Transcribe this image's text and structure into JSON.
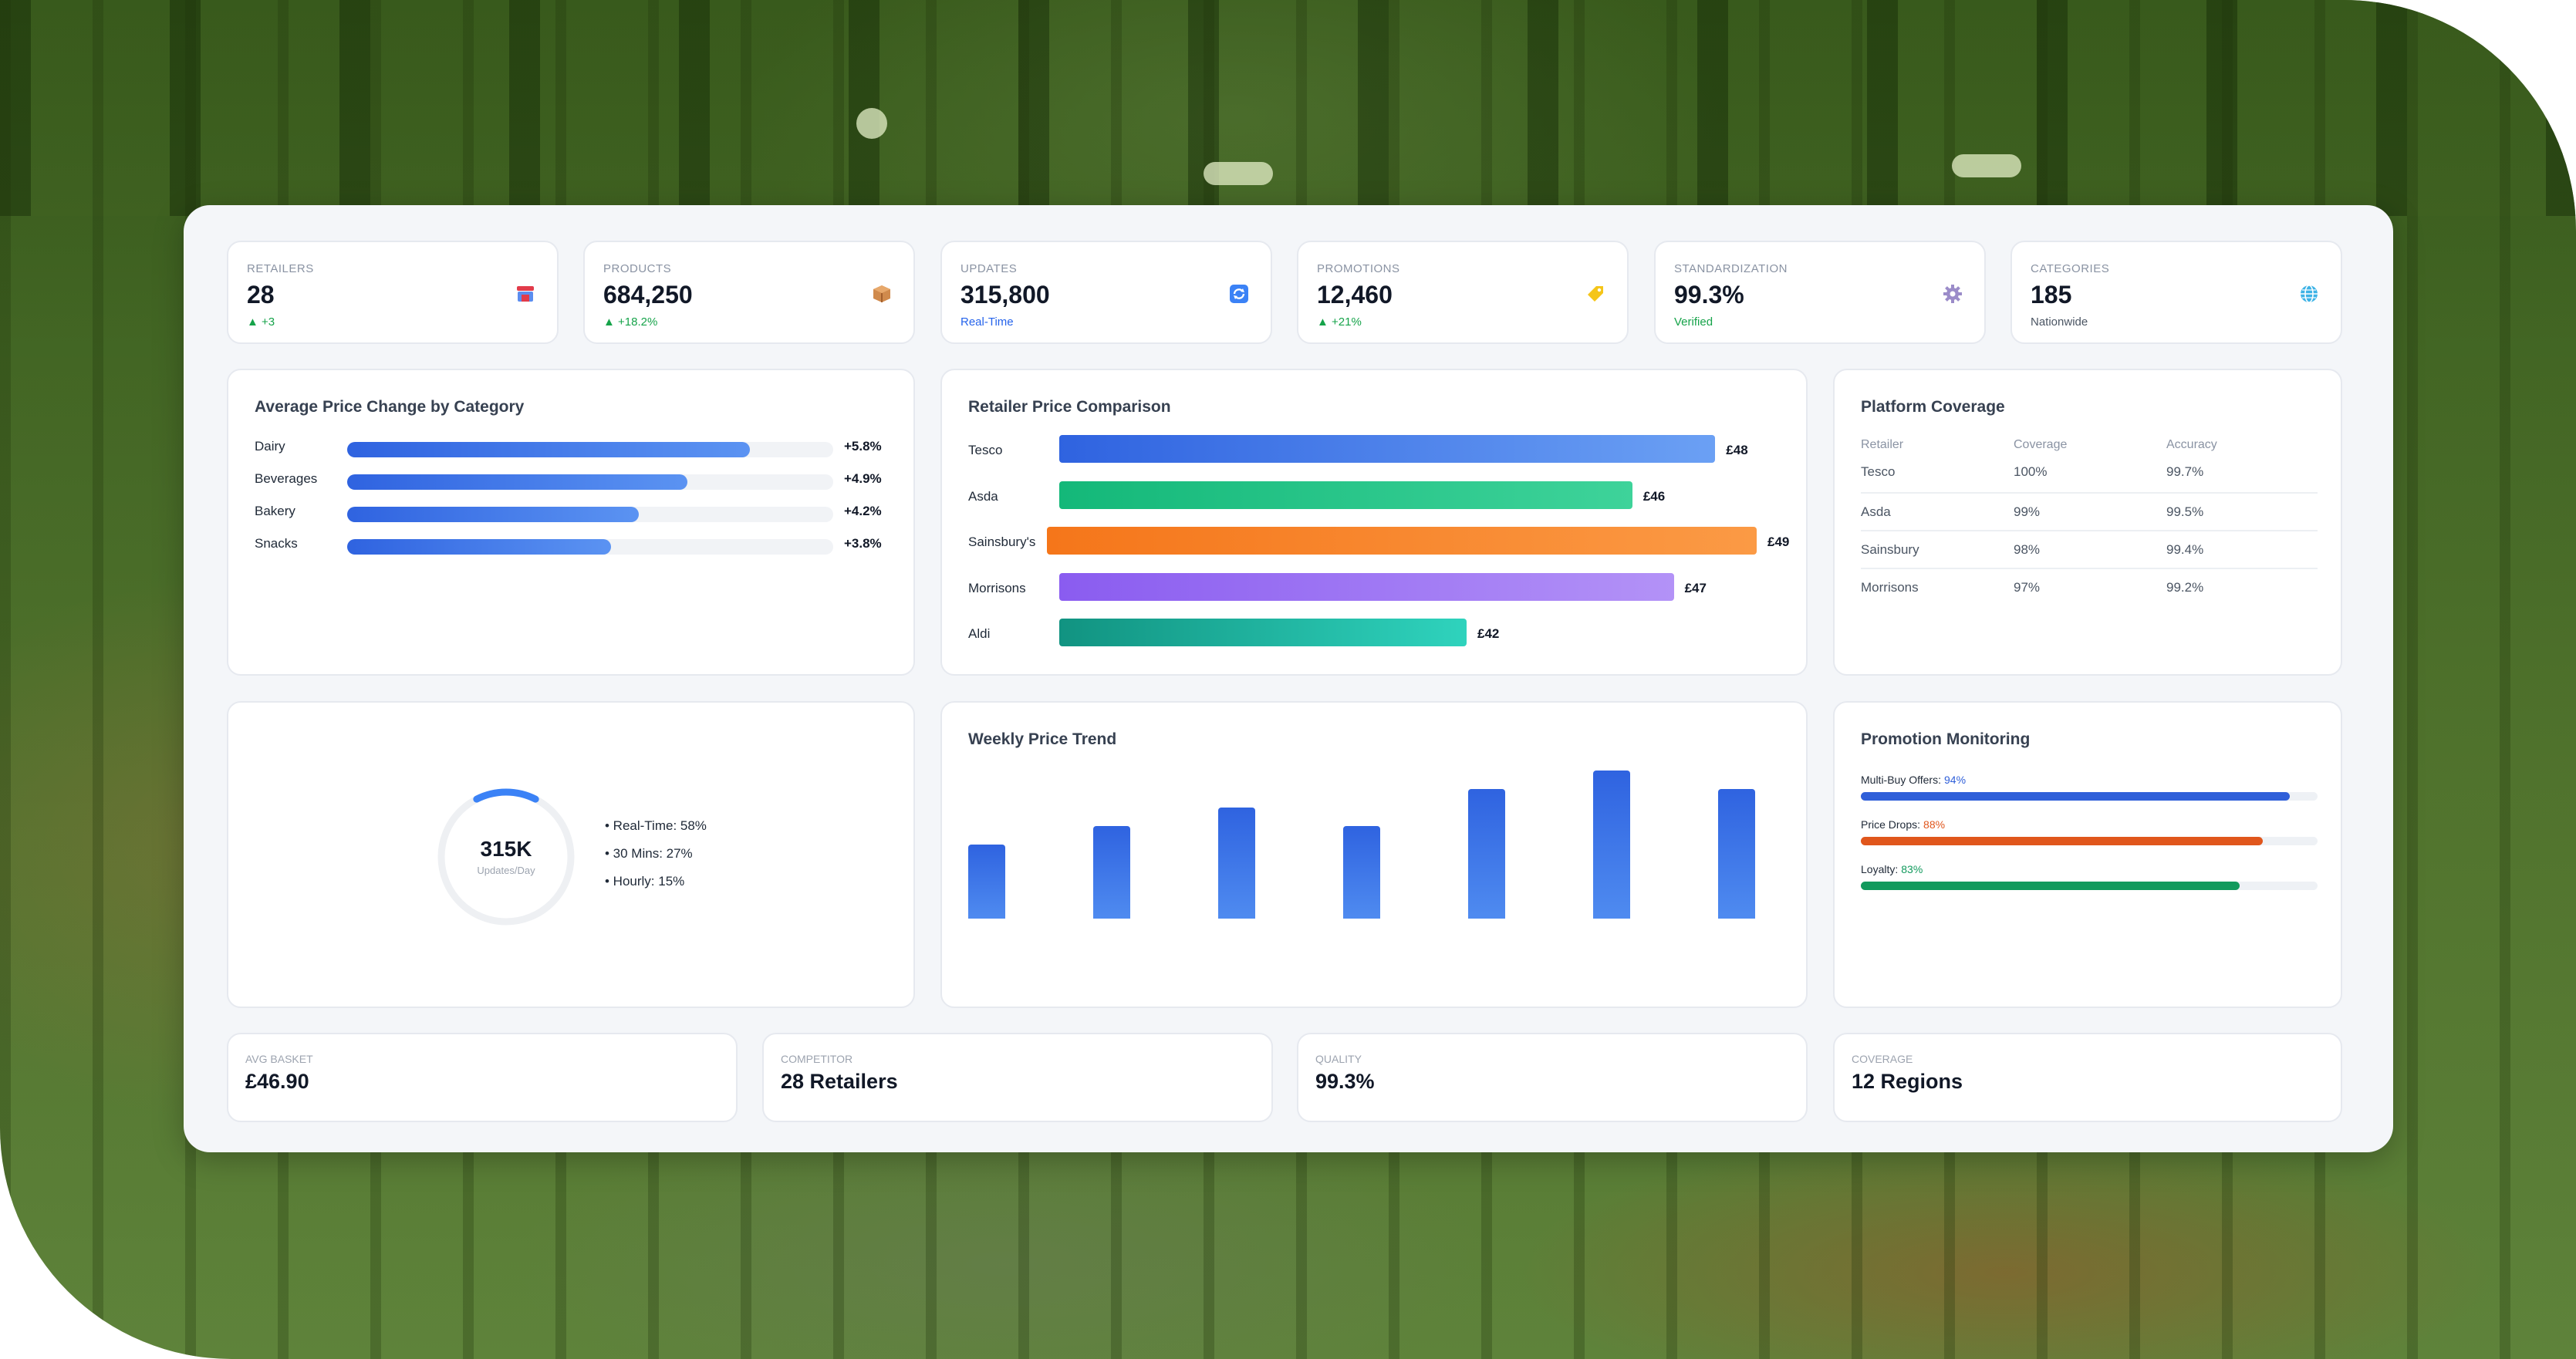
{
  "stats": [
    {
      "label": "RETAILERS",
      "value": "28",
      "sub": "▲ +3",
      "sub_color": "#16a34a",
      "icon": "store-icon",
      "icon_color": "#e23b4a"
    },
    {
      "label": "PRODUCTS",
      "value": "684,250",
      "sub": "▲ +18.2%",
      "sub_color": "#16a34a",
      "icon": "package-icon",
      "icon_color": "#c0703a"
    },
    {
      "label": "UPDATES",
      "value": "315,800",
      "sub": "Real-Time",
      "sub_color": "#2563eb",
      "icon": "refresh-icon",
      "icon_color": "#3b82f6"
    },
    {
      "label": "PROMOTIONS",
      "value": "12,460",
      "sub": "▲ +21%",
      "sub_color": "#16a34a",
      "icon": "tag-icon",
      "icon_color": "#eab308"
    },
    {
      "label": "STANDARDIZATION",
      "value": "99.3%",
      "sub": "Verified",
      "sub_color": "#16a34a",
      "icon": "gear-icon",
      "icon_color": "#8b7ab8"
    },
    {
      "label": "CATEGORIES",
      "value": "185",
      "sub": "Nationwide",
      "sub_color": "#4b5563",
      "icon": "globe-icon",
      "icon_color": "#22a7d8"
    }
  ],
  "avg_price_change": {
    "title": "Average Price Change by Category",
    "items": [
      {
        "name": "Dairy",
        "value": "+5.8%",
        "pct": 5.8
      },
      {
        "name": "Beverages",
        "value": "+4.9%",
        "pct": 4.9
      },
      {
        "name": "Bakery",
        "value": "+4.2%",
        "pct": 4.2
      },
      {
        "name": "Snacks",
        "value": "+3.8%",
        "pct": 3.8
      }
    ]
  },
  "retailer_comparison": {
    "title": "Retailer Price Comparison",
    "items": [
      {
        "name": "Tesco",
        "price": "£48",
        "amount": 48,
        "color_a": "#2f63e0",
        "color_b": "#6ba0f4"
      },
      {
        "name": "Asda",
        "price": "£46",
        "amount": 46,
        "color_a": "#14b879",
        "color_b": "#3ed39a"
      },
      {
        "name": "Sainsbury's",
        "price": "£49",
        "amount": 49,
        "color_a": "#f5761a",
        "color_b": "#fb9a45"
      },
      {
        "name": "Morrisons",
        "price": "£47",
        "amount": 47,
        "color_a": "#8a5cf0",
        "color_b": "#b392f7"
      },
      {
        "name": "Aldi",
        "price": "£42",
        "amount": 42,
        "color_a": "#119381",
        "color_b": "#2fd3bd"
      }
    ]
  },
  "platform_coverage": {
    "title": "Platform Coverage",
    "headers": [
      "Retailer",
      "Coverage",
      "Accuracy"
    ],
    "rows": [
      [
        "Tesco",
        "100%",
        "99.7%"
      ],
      [
        "Asda",
        "99%",
        "99.5%"
      ],
      [
        "Sainsbury",
        "98%",
        "99.4%"
      ],
      [
        "Morrisons",
        "97%",
        "99.2%"
      ]
    ]
  },
  "updates_gauge": {
    "value": "315K",
    "sub": "Updates/Day",
    "fraction": 0.15,
    "legend": [
      "• Real-Time: 58%",
      "• 30 Mins: 27%",
      "• Hourly: 15%"
    ]
  },
  "weekly_trend": {
    "title": "Weekly Price Trend",
    "values": [
      40,
      50,
      60,
      50,
      70,
      80,
      70
    ]
  },
  "promotion_monitoring": {
    "title": "Promotion Monitoring",
    "items": [
      {
        "label": "Multi-Buy Offers:",
        "value": "94%",
        "pct": 94,
        "color": "#2f5fd9"
      },
      {
        "label": "Price Drops:",
        "value": "88%",
        "pct": 88,
        "color": "#e0561c"
      },
      {
        "label": "Loyalty:",
        "value": "83%",
        "pct": 83,
        "color": "#129a5d"
      }
    ]
  },
  "bottom": [
    {
      "label": "AVG BASKET",
      "value": "£46.90"
    },
    {
      "label": "COMPETITOR",
      "value": "28 Retailers"
    },
    {
      "label": "QUALITY",
      "value": "99.3%"
    },
    {
      "label": "COVERAGE",
      "value": "12 Regions"
    }
  ]
}
